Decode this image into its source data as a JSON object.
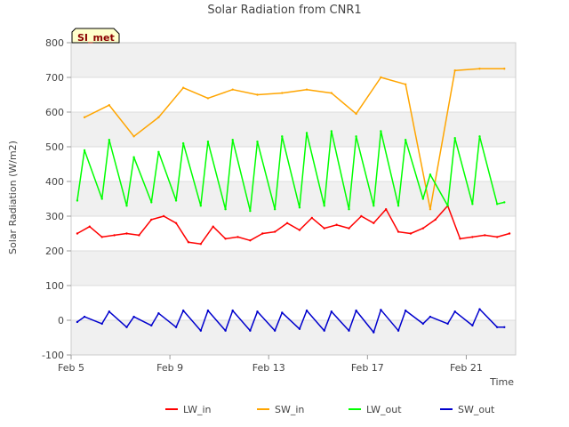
{
  "chart_data": {
    "type": "line",
    "title": "Solar Radiation from CNR1",
    "xlabel": "Time",
    "ylabel": "Solar Radiation (W/m2)",
    "badge": "SI_met",
    "ylim": [
      -100,
      800
    ],
    "yticks": [
      -100,
      0,
      100,
      200,
      300,
      400,
      500,
      600,
      700,
      800
    ],
    "xlim": [
      "2020-02-05",
      "2020-02-23"
    ],
    "xticks": [
      "Feb 5",
      "Feb 9",
      "Feb 13",
      "Feb 17",
      "Feb 21"
    ],
    "grid": "horizontal bands",
    "legend_position": "bottom",
    "series": [
      {
        "name": "LW_in",
        "color": "#ff0000",
        "x": [
          "Feb 5 06:00",
          "Feb 5 18:00",
          "Feb 6 06:00",
          "Feb 6 18:00",
          "Feb 7 06:00",
          "Feb 7 18:00",
          "Feb 8 06:00",
          "Feb 8 18:00",
          "Feb 9 06:00",
          "Feb 9 18:00",
          "Feb 10 06:00",
          "Feb 10 18:00",
          "Feb 11 06:00",
          "Feb 11 18:00",
          "Feb 12 06:00",
          "Feb 12 18:00",
          "Feb 13 06:00",
          "Feb 13 18:00",
          "Feb 14 06:00",
          "Feb 14 18:00",
          "Feb 15 06:00",
          "Feb 15 18:00",
          "Feb 16 06:00",
          "Feb 16 18:00",
          "Feb 17 06:00",
          "Feb 17 18:00",
          "Feb 18 06:00",
          "Feb 18 18:00",
          "Feb 19 06:00",
          "Feb 19 18:00",
          "Feb 20 06:00",
          "Feb 20 18:00",
          "Feb 21 06:00",
          "Feb 21 18:00",
          "Feb 22 06:00",
          "Feb 22 18:00"
        ],
        "values": [
          250,
          270,
          240,
          245,
          250,
          245,
          290,
          300,
          280,
          225,
          220,
          270,
          235,
          240,
          230,
          250,
          255,
          280,
          260,
          295,
          265,
          275,
          265,
          300,
          280,
          320,
          255,
          250,
          265,
          290,
          330,
          235,
          240,
          245,
          240,
          250
        ]
      },
      {
        "name": "SW_in",
        "color": "#ffa500",
        "x": [
          "Feb 5 13:00",
          "Feb 6 13:00",
          "Feb 7 13:00",
          "Feb 8 13:00",
          "Feb 9 13:00",
          "Feb 10 13:00",
          "Feb 11 13:00",
          "Feb 12 13:00",
          "Feb 13 13:00",
          "Feb 14 13:00",
          "Feb 15 13:00",
          "Feb 16 13:00",
          "Feb 17 13:00",
          "Feb 18 13:00",
          "Feb 19 13:00",
          "Feb 20 13:00",
          "Feb 21 13:00",
          "Feb 22 13:00"
        ],
        "values": [
          585,
          620,
          530,
          585,
          670,
          640,
          665,
          650,
          655,
          665,
          655,
          595,
          700,
          680,
          320,
          720,
          725,
          725
        ]
      },
      {
        "name": "LW_out",
        "color": "#00ff00",
        "x": [
          "Feb 5 06:00",
          "Feb 5 13:00",
          "Feb 6 06:00",
          "Feb 6 13:00",
          "Feb 7 06:00",
          "Feb 7 13:00",
          "Feb 8 06:00",
          "Feb 8 13:00",
          "Feb 9 06:00",
          "Feb 9 13:00",
          "Feb 10 06:00",
          "Feb 10 13:00",
          "Feb 11 06:00",
          "Feb 11 13:00",
          "Feb 12 06:00",
          "Feb 12 13:00",
          "Feb 13 06:00",
          "Feb 13 13:00",
          "Feb 14 06:00",
          "Feb 14 13:00",
          "Feb 15 06:00",
          "Feb 15 13:00",
          "Feb 16 06:00",
          "Feb 16 13:00",
          "Feb 17 06:00",
          "Feb 17 13:00",
          "Feb 18 06:00",
          "Feb 18 13:00",
          "Feb 19 06:00",
          "Feb 19 13:00",
          "Feb 20 06:00",
          "Feb 20 13:00",
          "Feb 21 06:00",
          "Feb 21 13:00",
          "Feb 22 06:00",
          "Feb 22 13:00"
        ],
        "values": [
          345,
          490,
          350,
          520,
          330,
          470,
          340,
          485,
          345,
          510,
          330,
          515,
          320,
          520,
          315,
          515,
          320,
          530,
          325,
          540,
          330,
          545,
          320,
          530,
          330,
          545,
          330,
          520,
          350,
          420,
          330,
          525,
          335,
          530,
          335,
          340
        ]
      },
      {
        "name": "SW_out",
        "color": "#0000cd",
        "x": [
          "Feb 5 06:00",
          "Feb 5 13:00",
          "Feb 6 06:00",
          "Feb 6 13:00",
          "Feb 7 06:00",
          "Feb 7 13:00",
          "Feb 8 06:00",
          "Feb 8 13:00",
          "Feb 9 06:00",
          "Feb 9 13:00",
          "Feb 10 06:00",
          "Feb 10 13:00",
          "Feb 11 06:00",
          "Feb 11 13:00",
          "Feb 12 06:00",
          "Feb 12 13:00",
          "Feb 13 06:00",
          "Feb 13 13:00",
          "Feb 14 06:00",
          "Feb 14 13:00",
          "Feb 15 06:00",
          "Feb 15 13:00",
          "Feb 16 06:00",
          "Feb 16 13:00",
          "Feb 17 06:00",
          "Feb 17 13:00",
          "Feb 18 06:00",
          "Feb 18 13:00",
          "Feb 19 06:00",
          "Feb 19 13:00",
          "Feb 20 06:00",
          "Feb 20 13:00",
          "Feb 21 06:00",
          "Feb 21 13:00",
          "Feb 22 06:00",
          "Feb 22 13:00"
        ],
        "values": [
          -5,
          10,
          -10,
          25,
          -20,
          10,
          -15,
          20,
          -20,
          28,
          -30,
          28,
          -30,
          28,
          -30,
          25,
          -30,
          22,
          -25,
          28,
          -30,
          25,
          -30,
          28,
          -35,
          30,
          -30,
          28,
          -10,
          10,
          -10,
          25,
          -15,
          32,
          -20,
          -20
        ]
      }
    ]
  }
}
